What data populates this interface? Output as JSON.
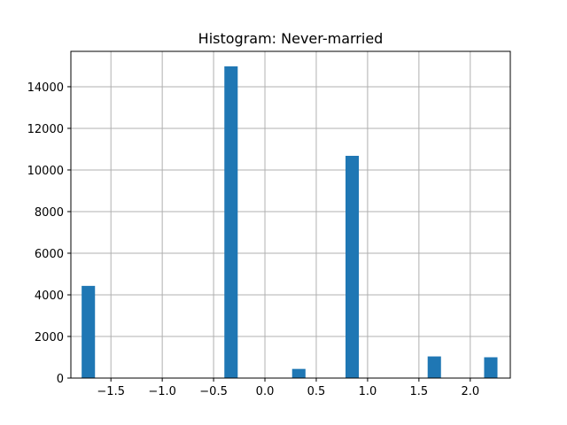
{
  "chart_data": {
    "type": "bar",
    "title": "Histogram:  Never-married",
    "xlabel": "",
    "ylabel": "",
    "xlim": [
      -1.89,
      2.39
    ],
    "ylim": [
      0,
      15700
    ],
    "grid": true,
    "bar_color": "#1f77b4",
    "bin_width": 0.13,
    "bars": [
      {
        "x": -1.72,
        "height": 4430
      },
      {
        "x": -0.33,
        "height": 14980
      },
      {
        "x": 0.33,
        "height": 440
      },
      {
        "x": 0.85,
        "height": 10680
      },
      {
        "x": 1.65,
        "height": 1040
      },
      {
        "x": 2.2,
        "height": 1000
      }
    ],
    "x_ticks": [
      {
        "value": -1.5,
        "label": "−1.5"
      },
      {
        "value": -1.0,
        "label": "−1.0"
      },
      {
        "value": -0.5,
        "label": "−0.5"
      },
      {
        "value": 0.0,
        "label": "0.0"
      },
      {
        "value": 0.5,
        "label": "0.5"
      },
      {
        "value": 1.0,
        "label": "1.0"
      },
      {
        "value": 1.5,
        "label": "1.5"
      },
      {
        "value": 2.0,
        "label": "2.0"
      }
    ],
    "y_ticks": [
      {
        "value": 0,
        "label": "0"
      },
      {
        "value": 2000,
        "label": "2000"
      },
      {
        "value": 4000,
        "label": "4000"
      },
      {
        "value": 6000,
        "label": "6000"
      },
      {
        "value": 8000,
        "label": "8000"
      },
      {
        "value": 10000,
        "label": "10000"
      },
      {
        "value": 12000,
        "label": "12000"
      },
      {
        "value": 14000,
        "label": "14000"
      }
    ]
  }
}
